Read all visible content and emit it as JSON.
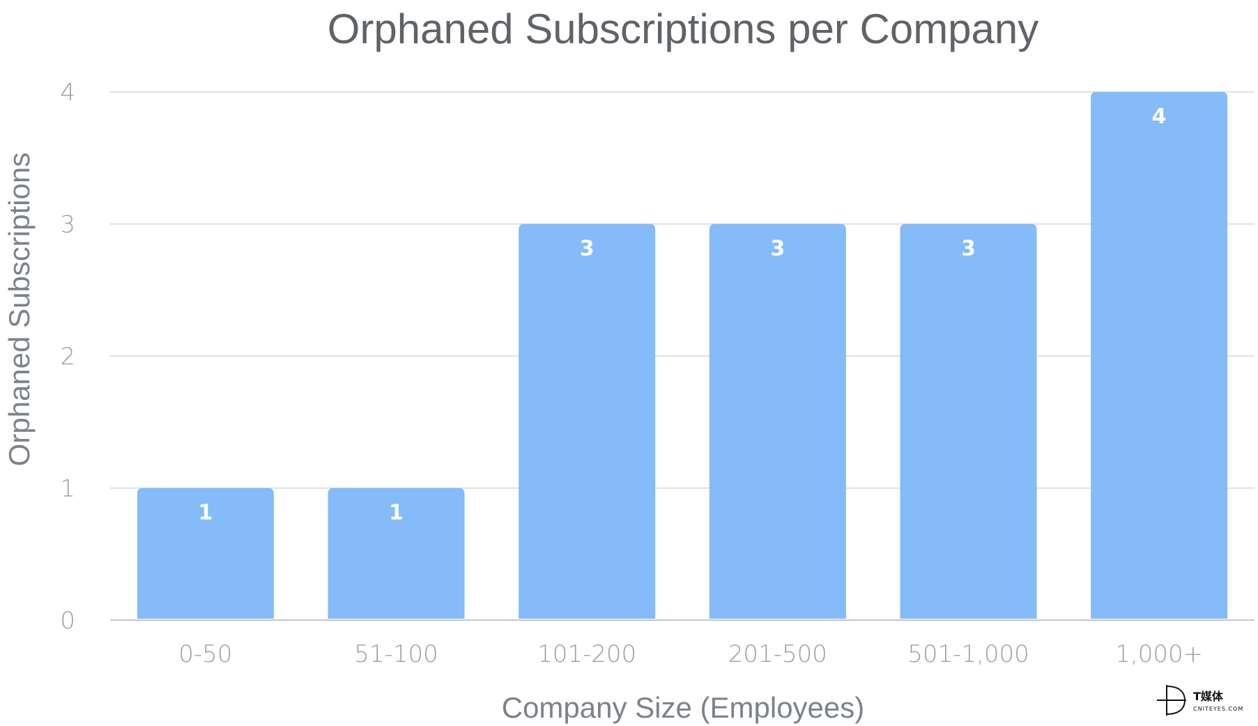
{
  "chart_data": {
    "type": "bar",
    "title": "Orphaned Subscriptions per Company",
    "xlabel": "Company Size (Employees)",
    "ylabel": "Orphaned Subscriptions",
    "categories": [
      "0-50",
      "51-100",
      "101-200",
      "201-500",
      "501-1,000",
      "1,000+"
    ],
    "values": [
      1,
      1,
      3,
      3,
      3,
      4
    ],
    "data_labels": [
      "1",
      "1",
      "3",
      "3",
      "3",
      "4"
    ],
    "ylim": [
      0,
      4
    ],
    "yticks": [
      "0",
      "1",
      "2",
      "3",
      "4"
    ],
    "grid": true,
    "legend": "none",
    "bar_color": "#84bbf8"
  },
  "watermark": {
    "chinese": "T媒体",
    "english": "CNITEYES.COM"
  }
}
